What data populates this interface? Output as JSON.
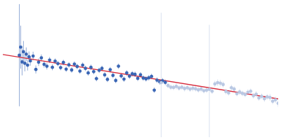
{
  "chart_data": {
    "type": "scatter",
    "tick_labels": false,
    "grid": false,
    "xlim": [
      0,
      100
    ],
    "ylim": [
      0,
      50
    ],
    "series": [
      {
        "color": "#b9c8e3",
        "marker": "circle",
        "x": [
          57.5,
          60,
          61,
          62,
          63,
          64,
          65,
          66,
          67,
          68,
          69,
          70,
          71,
          72,
          73,
          74,
          75,
          76,
          77,
          78,
          79,
          80,
          81,
          82,
          83,
          84,
          85,
          86,
          87,
          88,
          89,
          90,
          91,
          92,
          93,
          94,
          95,
          96,
          97,
          98,
          99,
          100
        ],
        "values": [
          20.3,
          19.2,
          18.6,
          18.5,
          18.9,
          18.3,
          18.6,
          18.1,
          18.4,
          17.9,
          18.2,
          18.0,
          17.6,
          17.9,
          17.3,
          17.5,
          17.8,
          17.1,
          19.8,
          20.3,
          20.1,
          19.6,
          17.0,
          16.5,
          18.4,
          17.9,
          16.2,
          16.8,
          16.3,
          15.9,
          16.7,
          17.1,
          15.4,
          16.0,
          14.6,
          15.2,
          14.3,
          15.0,
          14.8,
          13.4,
          13.9,
          12.6
        ],
        "errors": [
          26,
          1.0,
          1.0,
          1.0,
          1.1,
          1.0,
          1.0,
          1.1,
          1.0,
          1.0,
          1.1,
          1.0,
          1.0,
          1.1,
          1.0,
          1.0,
          24,
          1.0,
          1.2,
          1.2,
          1.2,
          1.1,
          1.0,
          1.0,
          1.1,
          1.0,
          1.0,
          1.1,
          1.0,
          1.0,
          1.1,
          1.0,
          1.0,
          1.1,
          1.0,
          1.0,
          1.1,
          1.0,
          1.2,
          1.1,
          1.2,
          1.3
        ]
      },
      {
        "color": "#3a66b5",
        "marker": "circle",
        "x": [
          6,
          6.5,
          7,
          7.5,
          8,
          8.5,
          9,
          9.5,
          10,
          11,
          12,
          13,
          14,
          15,
          16,
          17,
          18,
          19,
          20,
          21,
          22,
          23,
          24,
          25,
          26,
          27,
          28,
          29,
          30,
          31,
          32,
          33,
          34,
          35,
          36,
          37,
          38,
          39,
          40,
          41,
          42,
          43,
          44,
          45,
          46,
          47,
          48,
          49,
          50,
          51,
          52,
          53,
          54,
          55,
          56,
          57,
          58,
          59
        ],
        "values": [
          30.5,
          33.5,
          28.0,
          31.8,
          27.5,
          30.9,
          26.8,
          29.9,
          28.4,
          30.2,
          25.2,
          27.9,
          29.5,
          27.1,
          26.4,
          28.7,
          26.0,
          28.3,
          27.4,
          25.9,
          27.8,
          25.3,
          26.9,
          25.0,
          27.2,
          26.3,
          24.6,
          26.8,
          25.6,
          23.9,
          26.0,
          24.4,
          21.8,
          24.9,
          25.6,
          23.2,
          21.5,
          25.1,
          23.0,
          21.1,
          26.4,
          22.8,
          21.6,
          23.9,
          22.7,
          23.6,
          23.4,
          21.9,
          23.2,
          22.0,
          21.7,
          22.1,
          22.6,
          17.5,
          21.2,
          20.6,
          21.0,
          20.4
        ],
        "errors": [
          19,
          8,
          5,
          4,
          3,
          2.5,
          2,
          2,
          1.8,
          1.6,
          1.5,
          1.4,
          1.3,
          1.2,
          1.2,
          1.1,
          1.1,
          1.0,
          1.0,
          1.0,
          1.0,
          1.0,
          1.0,
          1.0,
          1.0,
          1.0,
          1.0,
          1.0,
          1.0,
          1.0,
          1.0,
          1.0,
          1.0,
          1.0,
          1.0,
          1.0,
          1.0,
          1.0,
          1.0,
          1.0,
          1.0,
          1.0,
          1.0,
          1.0,
          1.0,
          1.0,
          1.0,
          1.0,
          1.0,
          1.0,
          1.0,
          1.0,
          1.0,
          1.0,
          1.0,
          1.0,
          1.0,
          1.0
        ]
      },
      {
        "type": "line",
        "color": "#d62839",
        "line_style": "solid",
        "x": [
          0,
          100
        ],
        "values": [
          30.75,
          14.25
        ]
      }
    ]
  }
}
